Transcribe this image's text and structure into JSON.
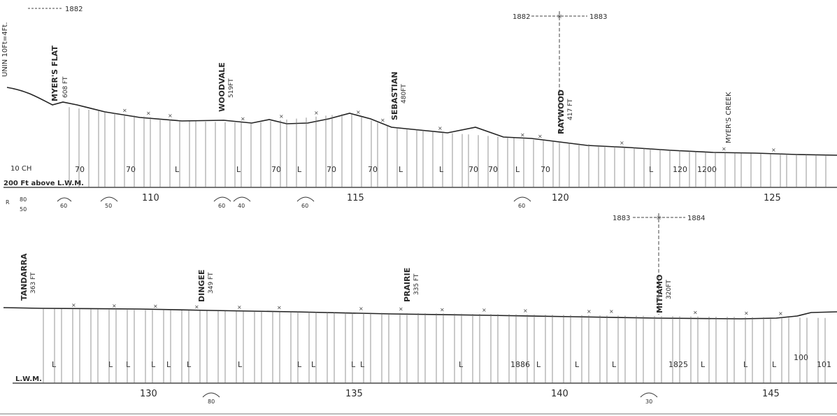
{
  "upper": {
    "corner_label": "UNIN 10Ft=4Ft.",
    "year_marker_left": "1882",
    "year_split": [
      "1882",
      "1883"
    ],
    "stations": [
      {
        "name": "MYER'S FLAT",
        "elev": "608 FT"
      },
      {
        "name": "WOODVALE",
        "elev": "519FT"
      },
      {
        "name": "SEBASTIAN",
        "elev": "480FT"
      },
      {
        "name": "RAYWOOD",
        "elev": "417 FT"
      },
      {
        "name": "MYER'S CREEK",
        "elev": ""
      }
    ],
    "datum_top": "10 CH",
    "datum": "200 Ft above L.W.M.",
    "grades": [
      "70",
      "70",
      "L",
      "L",
      "70",
      "L",
      "70",
      "70",
      "L",
      "L",
      "70",
      "70",
      "L",
      "70",
      "L",
      "120",
      "1200"
    ],
    "mileposts": [
      "110",
      "115",
      "120",
      "125"
    ],
    "curves": [
      "60",
      "50",
      "60",
      "40",
      "60",
      "60"
    ],
    "scale_fragment": [
      "R",
      "80",
      "50"
    ]
  },
  "lower": {
    "year_split": [
      "1883",
      "1884"
    ],
    "stations": [
      {
        "name": "TANDARRA",
        "elev": "363 FT"
      },
      {
        "name": "DINGEE",
        "elev": "349 FT"
      },
      {
        "name": "PRAIRIE",
        "elev": "335 FT"
      },
      {
        "name": "MITIAMO",
        "elev": "320FT"
      }
    ],
    "datum": "L.W.M.",
    "grades": [
      "L",
      "L",
      "L",
      "L",
      "L",
      "L",
      "L",
      "L",
      "L",
      "L",
      "L",
      "L",
      "1886",
      "L",
      "L",
      "L",
      "1825",
      "L",
      "L",
      "L",
      "100",
      "101"
    ],
    "mileposts": [
      "130",
      "135",
      "140",
      "145"
    ],
    "curves": [
      "80",
      "30"
    ]
  }
}
